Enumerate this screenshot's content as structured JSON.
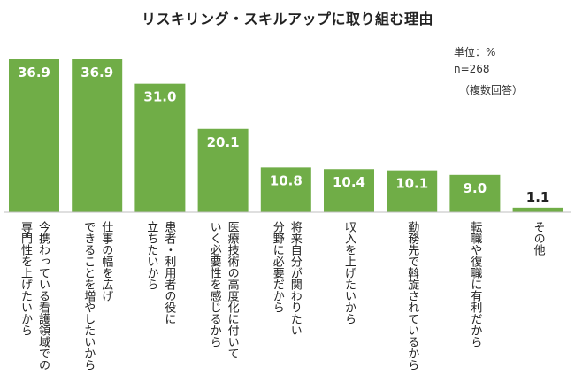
{
  "chart_data": {
    "type": "bar",
    "title": "リスキリング・スキルアップに取り組む理由",
    "unit_note": "単位：%",
    "n_note": "n=268",
    "multi_note": "（複数回答）",
    "ylim": [
      0,
      36.9
    ],
    "bar_color": "#70ad47",
    "categories": [
      [
        "今携わっている看護領域での",
        "専門性を上げたいから"
      ],
      [
        "仕事の幅を広げ",
        "できることを増やしたいから"
      ],
      [
        "患者・利用者の役に",
        "立ちたいから"
      ],
      [
        "医療技術の高度化に付いて",
        "いく必要性を感じるから"
      ],
      [
        "将来自分が関わりたい",
        "分野に必要だから"
      ],
      [
        "収入を上げたいから"
      ],
      [
        "勤務先で斡旋されているから"
      ],
      [
        "転職や復職に有利だから"
      ],
      [
        "その他"
      ]
    ],
    "values": [
      36.9,
      36.9,
      31.0,
      20.1,
      10.8,
      10.4,
      10.1,
      9.0,
      1.1
    ],
    "value_labels": [
      "36.9",
      "36.9",
      "31.0",
      "20.1",
      "10.8",
      "10.4",
      "10.1",
      "9.0",
      "1.1"
    ]
  }
}
